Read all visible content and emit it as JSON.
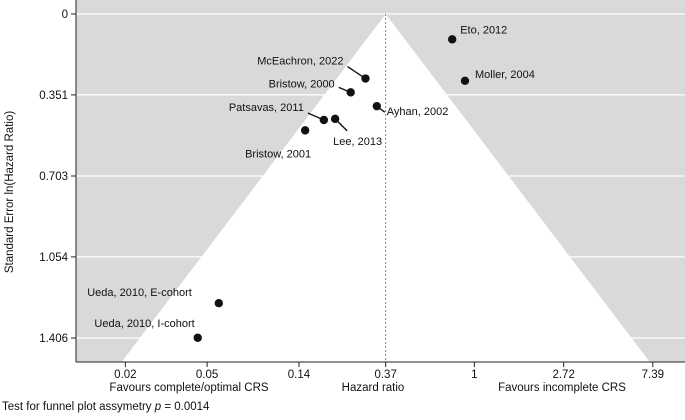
{
  "chart_data": {
    "type": "scatter",
    "subtype": "funnel-plot",
    "x_scale": "log",
    "x_ticks": [
      {
        "value": 0.02,
        "label": "0.02"
      },
      {
        "value": 0.05,
        "label": "0.05"
      },
      {
        "value": 0.14,
        "label": "0.14"
      },
      {
        "value": 0.37,
        "label": "0.37"
      },
      {
        "value": 1,
        "label": "1"
      },
      {
        "value": 2.72,
        "label": "2.72"
      },
      {
        "value": 7.39,
        "label": "7.39"
      }
    ],
    "xlim": [
      0.0115,
      10.6
    ],
    "y_ticks": [
      {
        "value": 0,
        "label": "0"
      },
      {
        "value": 0.351,
        "label": "0.351"
      },
      {
        "value": 0.703,
        "label": "0.703"
      },
      {
        "value": 1.054,
        "label": "1.054"
      },
      {
        "value": 1.406,
        "label": "1.406"
      }
    ],
    "ylim": [
      0,
      1.44
    ],
    "y_reversed": true,
    "ylabel": "Standard Error ln(Hazard Ratio)",
    "xlabel": "Hazard ratio",
    "x_side_labels": {
      "left": "Favours complete/optimal CRS",
      "right": "Favours incomplete CRS"
    },
    "pooled_estimate": 0.37,
    "grid": true,
    "colors": {
      "background": "#d9d9d9",
      "funnel": "#ffffff",
      "grid": "#ffffff",
      "points": "#111111"
    },
    "points": [
      {
        "label": "Eto, 2012",
        "x": 0.78,
        "y": 0.11
      },
      {
        "label": "Moller, 2004",
        "x": 0.9,
        "y": 0.29
      },
      {
        "label": "McEachron, 2022",
        "x": 0.295,
        "y": 0.28
      },
      {
        "label": "Bristow, 2000",
        "x": 0.25,
        "y": 0.34
      },
      {
        "label": "Ayhan, 2002",
        "x": 0.335,
        "y": 0.4
      },
      {
        "label": "Patsavas, 2011",
        "x": 0.185,
        "y": 0.46
      },
      {
        "label": "Lee, 2013",
        "x": 0.21,
        "y": 0.455
      },
      {
        "label": "Bristow, 2001",
        "x": 0.15,
        "y": 0.505
      },
      {
        "label": "Ueda, 2010, E-cohort",
        "x": 0.057,
        "y": 1.255
      },
      {
        "label": "Ueda, 2010, I-cohort",
        "x": 0.045,
        "y": 1.405
      }
    ]
  },
  "footnote": {
    "prefix": "Test for funnel plot assymetry ",
    "p_symbol": "p",
    "suffix": " = 0.0014"
  }
}
